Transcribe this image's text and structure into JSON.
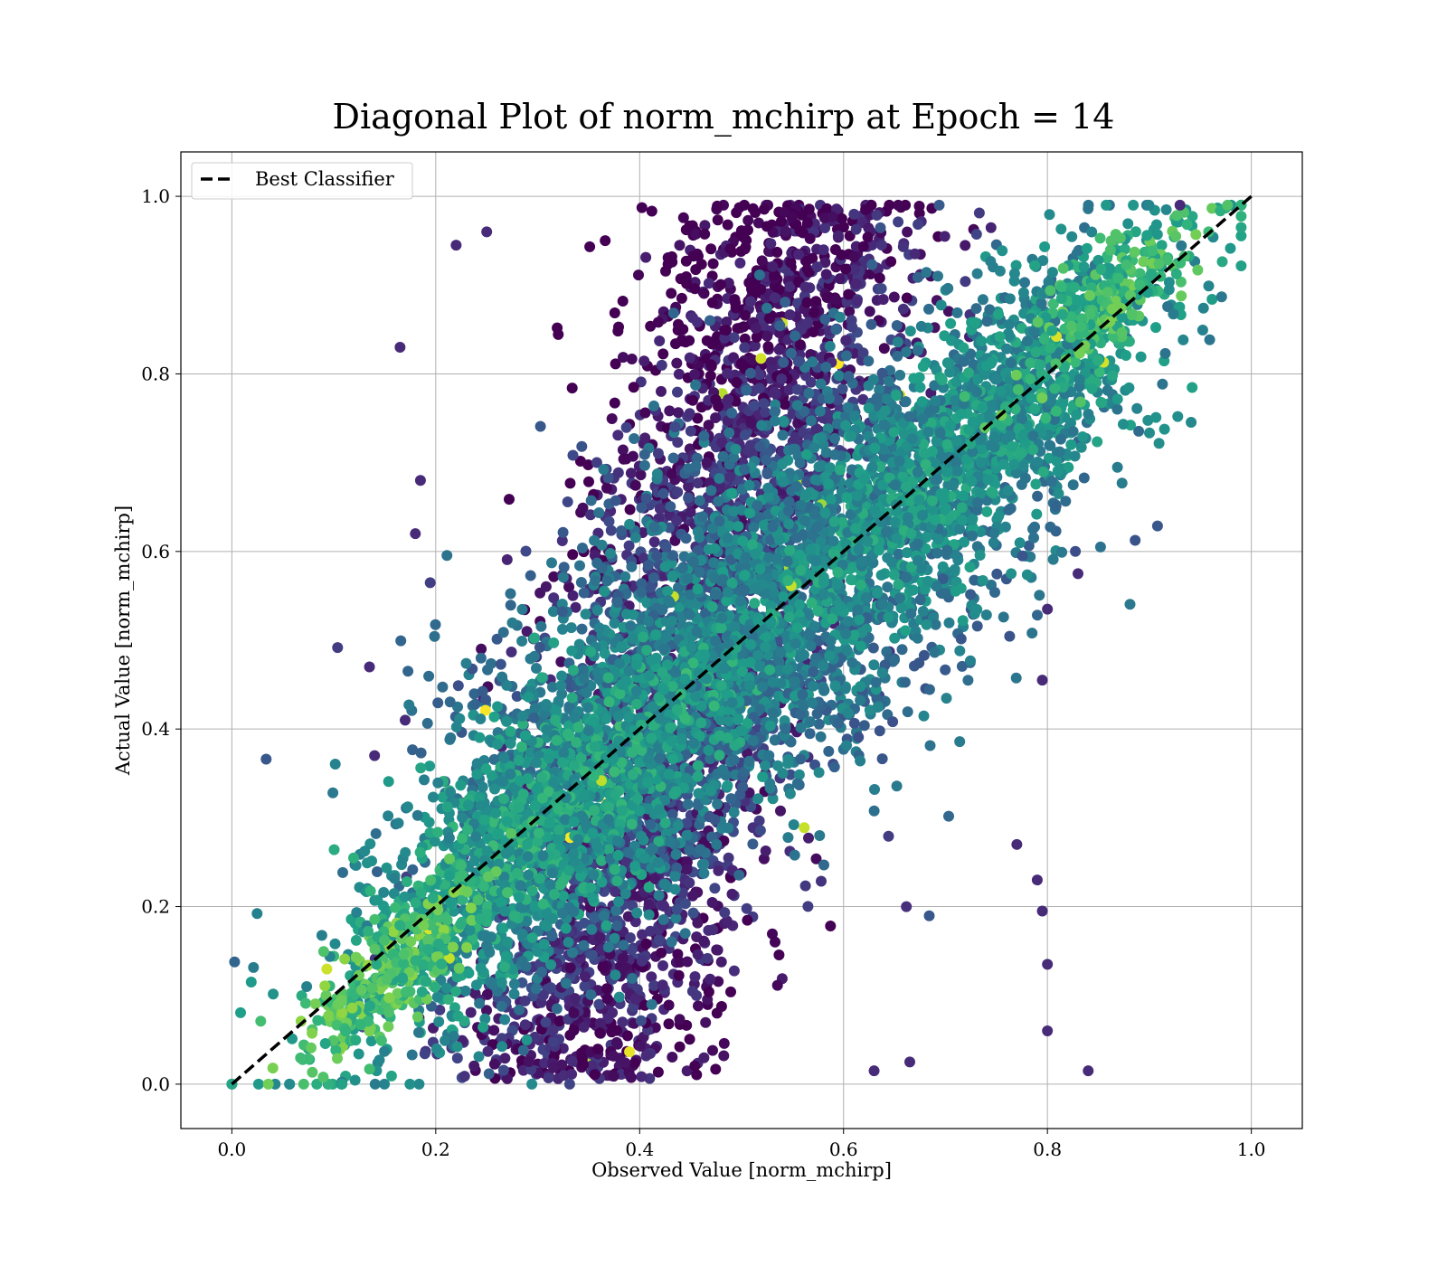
{
  "chart_data": {
    "type": "scatter",
    "title": "Diagonal Plot of norm_mchirp at Epoch = 14",
    "xlabel": "Observed Value [norm_mchirp]",
    "ylabel": "Actual Value [norm_mchirp]",
    "xlim": [
      -0.05,
      1.05
    ],
    "ylim": [
      -0.05,
      1.05
    ],
    "xticks": [
      0.0,
      0.2,
      0.4,
      0.6,
      0.8,
      1.0
    ],
    "yticks": [
      0.0,
      0.2,
      0.4,
      0.6,
      0.8,
      1.0
    ],
    "xtick_labels": [
      "0.0",
      "0.2",
      "0.4",
      "0.6",
      "0.8",
      "1.0"
    ],
    "ytick_labels": [
      "0.0",
      "0.2",
      "0.4",
      "0.6",
      "0.8",
      "1.0"
    ],
    "grid": true,
    "colormap": "viridis",
    "reference_line": {
      "name": "Best Classifier",
      "x": [
        0.0,
        1.0
      ],
      "y": [
        0.0,
        1.0
      ],
      "style": "dashed",
      "color": "#000000"
    },
    "legend": {
      "position": "top-left",
      "entries": [
        "Best Classifier"
      ]
    },
    "point_clusters": [
      {
        "x": 0.45,
        "y": 0.5,
        "sx": 0.07,
        "sy": 0.26,
        "spread": "vertical-band",
        "color_level": 0.05
      },
      {
        "x": 0.5,
        "y": 0.5,
        "sx": 0.15,
        "sy": 0.15,
        "spread": "along-diagonal",
        "color_level": 0.3
      },
      {
        "x": 0.3,
        "y": 0.28,
        "sx": 0.09,
        "sy": 0.11,
        "spread": "lower-left",
        "color_level": 0.4
      },
      {
        "x": 0.72,
        "y": 0.72,
        "sx": 0.09,
        "sy": 0.11,
        "spread": "upper-right",
        "color_level": 0.35
      },
      {
        "x": 0.15,
        "y": 0.12,
        "sx": 0.04,
        "sy": 0.05,
        "spread": "lower-left-tip",
        "color_level": 0.55
      },
      {
        "x": 0.86,
        "y": 0.88,
        "sx": 0.04,
        "sy": 0.05,
        "spread": "upper-right-tip",
        "color_level": 0.5
      }
    ],
    "outliers": [
      [
        0.165,
        0.83
      ],
      [
        0.22,
        0.945
      ],
      [
        0.84,
        0.015
      ],
      [
        0.8,
        0.06
      ],
      [
        0.8,
        0.135
      ],
      [
        0.185,
        0.68
      ],
      [
        0.135,
        0.47
      ],
      [
        0.83,
        0.575
      ],
      [
        0.8,
        0.535
      ],
      [
        0.795,
        0.455
      ],
      [
        0.18,
        0.62
      ],
      [
        0.25,
        0.96
      ],
      [
        0.93,
        0.99
      ],
      [
        0.79,
        0.23
      ],
      [
        0.795,
        0.195
      ],
      [
        0.77,
        0.27
      ],
      [
        0.665,
        0.025
      ],
      [
        0.63,
        0.015
      ],
      [
        0.17,
        0.41
      ],
      [
        0.14,
        0.37
      ]
    ]
  }
}
